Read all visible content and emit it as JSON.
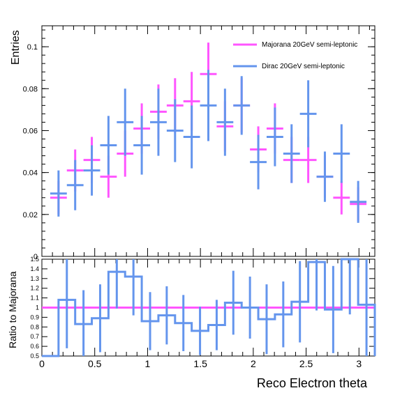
{
  "chart_data": [
    {
      "type": "line",
      "panel": "top",
      "ylabel": "Entries",
      "xlabel": "",
      "xlim": [
        0,
        3.15
      ],
      "ylim": [
        0,
        0.11
      ],
      "yticks": [
        {
          "v": 0,
          "label": "0"
        },
        {
          "v": 0.02,
          "label": "0.02"
        },
        {
          "v": 0.04,
          "label": "0.04"
        },
        {
          "v": 0.06,
          "label": "0.06"
        },
        {
          "v": 0.08,
          "label": "0.08"
        },
        {
          "v": 0.1,
          "label": "0.1"
        }
      ],
      "legend_position": "top-right",
      "bins": [
        0.1575,
        0.315,
        0.4725,
        0.63,
        0.7875,
        0.945,
        1.1025,
        1.26,
        1.4175,
        1.575,
        1.7325,
        1.89,
        2.0475,
        2.205,
        2.3625,
        2.52,
        2.6775,
        2.835,
        2.9925
      ],
      "series": [
        {
          "name": "Majorana 20GeV semi-leptonic",
          "color": "#ff55ff",
          "values": [
            0.028,
            0.041,
            0.046,
            0.038,
            0.049,
            0.061,
            0.069,
            0.072,
            0.074,
            0.087,
            0.062,
            0.072,
            0.051,
            0.061,
            0.046,
            0.046,
            0.038,
            0.028,
            0.025
          ],
          "errors": [
            0.008,
            0.01,
            0.011,
            0.01,
            0.011,
            0.012,
            0.013,
            0.013,
            0.014,
            0.015,
            0.012,
            0.013,
            0.011,
            0.012,
            0.011,
            0.011,
            0.01,
            0.008,
            0.008
          ]
        },
        {
          "name": "Dirac 20GeV semi-leptonic",
          "color": "#6495ed",
          "values": [
            0.03,
            0.034,
            0.041,
            0.053,
            0.064,
            0.053,
            0.064,
            0.06,
            0.057,
            0.072,
            0.064,
            0.072,
            0.045,
            0.057,
            0.049,
            0.068,
            0.038,
            0.049,
            0.026
          ],
          "errors": [
            0.011,
            0.012,
            0.012,
            0.014,
            0.016,
            0.014,
            0.016,
            0.015,
            0.015,
            0.017,
            0.016,
            0.014,
            0.013,
            0.014,
            0.014,
            0.016,
            0.012,
            0.014,
            0.01
          ]
        }
      ]
    },
    {
      "type": "line",
      "panel": "ratio",
      "ylabel": "Ratio to Majorana",
      "xlabel": "Reco Electron theta",
      "xlim": [
        0,
        3.15
      ],
      "ylim": [
        0.5,
        1.5
      ],
      "xticks": [
        {
          "v": 0,
          "label": "0"
        },
        {
          "v": 0.5,
          "label": "0.5"
        },
        {
          "v": 1,
          "label": "1"
        },
        {
          "v": 1.5,
          "label": "1.5"
        },
        {
          "v": 2,
          "label": "2"
        },
        {
          "v": 2.5,
          "label": "2.5"
        },
        {
          "v": 3,
          "label": "3"
        }
      ],
      "yticks": [
        {
          "v": 0.5,
          "label": "0.5"
        },
        {
          "v": 0.6,
          "label": "0.6"
        },
        {
          "v": 0.7,
          "label": "0.7"
        },
        {
          "v": 0.8,
          "label": "0.8"
        },
        {
          "v": 0.9,
          "label": "0.9"
        },
        {
          "v": 1.0,
          "label": "1"
        },
        {
          "v": 1.1,
          "label": "1.1"
        },
        {
          "v": 1.2,
          "label": "1.2"
        },
        {
          "v": 1.3,
          "label": "1.3"
        },
        {
          "v": 1.4,
          "label": "1.4"
        },
        {
          "v": 1.5,
          "label": "1.5"
        }
      ],
      "bin_edges": [
        0,
        0.0787,
        0.1575,
        0.315,
        0.4725,
        0.63,
        0.7875,
        0.945,
        1.1025,
        1.26,
        1.4175,
        1.575,
        1.7325,
        1.89,
        2.0475,
        2.205,
        2.3625,
        2.52,
        2.6775,
        2.835,
        2.9925,
        3.15
      ],
      "reference": {
        "value": 1.0,
        "color": "#ff55ff"
      },
      "series": [
        {
          "color": "#6495ed",
          "values": [
            0.5,
            0.5,
            1.08,
            0.83,
            0.89,
            1.37,
            1.32,
            0.86,
            0.92,
            0.84,
            0.76,
            0.82,
            1.05,
            1.0,
            0.88,
            0.93,
            1.06,
            1.47,
            0.98,
            1.5,
            1.03,
            0.5
          ],
          "errors": [
            0,
            0,
            0.5,
            0.35,
            0.35,
            0.38,
            0.4,
            0.3,
            0.3,
            0.29,
            0.25,
            0.26,
            0.33,
            0.32,
            0.36,
            0.34,
            0.42,
            0.5,
            0.45,
            0.57,
            0.55,
            0
          ]
        }
      ]
    }
  ]
}
